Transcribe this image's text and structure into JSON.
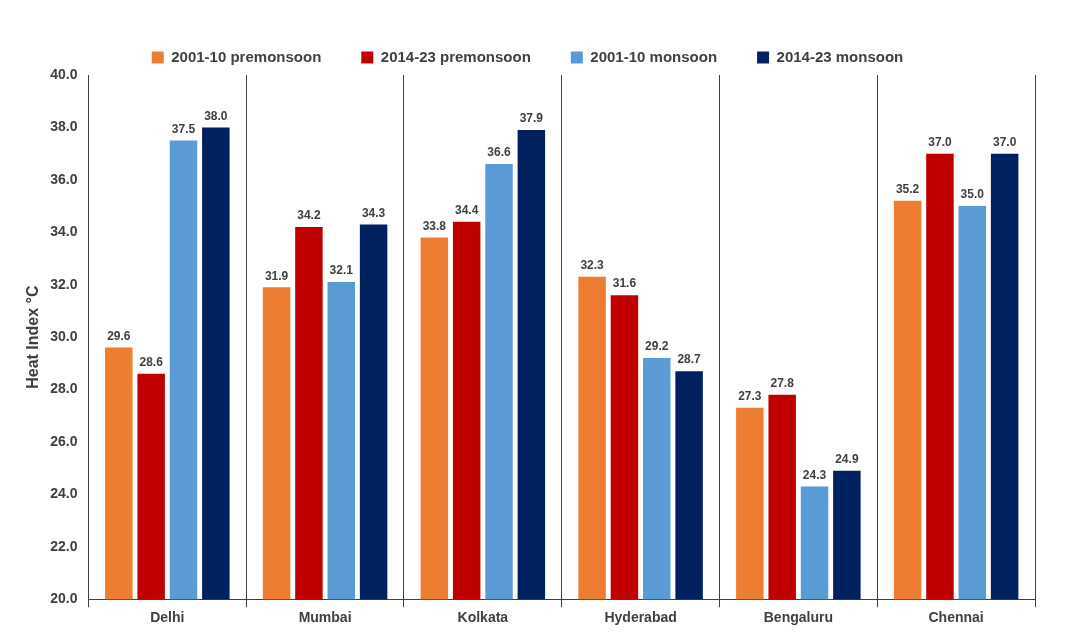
{
  "chart_data": {
    "type": "bar",
    "ylabel": "Heat Index °C",
    "categories": [
      "Delhi",
      "Mumbai",
      "Kolkata",
      "Hyderabad",
      "Bengaluru",
      "Chennai"
    ],
    "series": [
      {
        "name": "2001-10 premonsoon",
        "color": "#ed7d31",
        "values": [
          29.6,
          31.9,
          33.8,
          32.3,
          27.3,
          35.2
        ],
        "value_labels": [
          "29.6",
          "31.9",
          "33.8",
          "32.3",
          "27.3",
          "35.2"
        ]
      },
      {
        "name": "2014-23 premonsoon",
        "color": "#c00000",
        "values": [
          28.6,
          34.2,
          34.4,
          31.6,
          27.8,
          37.0
        ],
        "value_labels": [
          "28.6",
          "34.2",
          "34.4",
          "31.6",
          "27.8",
          "37.0"
        ]
      },
      {
        "name": "2001-10 monsoon",
        "color": "#5b9bd5",
        "values": [
          37.5,
          32.1,
          36.6,
          29.2,
          24.3,
          35.0
        ],
        "value_labels": [
          "37.5",
          "32.1",
          "36.6",
          "29.2",
          "24.3",
          "35.0"
        ]
      },
      {
        "name": "2014-23 monsoon",
        "color": "#002060",
        "values": [
          38.0,
          34.3,
          37.9,
          28.7,
          24.9,
          37.0
        ],
        "value_labels": [
          "38.0",
          "34.3",
          "37.9",
          "28.7",
          "24.9",
          "37.0"
        ]
      }
    ],
    "ylim": [
      20,
      40
    ],
    "yticks": [
      {
        "value": 20,
        "label": "20.0"
      },
      {
        "value": 22,
        "label": "22.0"
      },
      {
        "value": 24,
        "label": "24.0"
      },
      {
        "value": 26,
        "label": "26.0"
      },
      {
        "value": 28,
        "label": "28.0"
      },
      {
        "value": 30,
        "label": "30.0"
      },
      {
        "value": 32,
        "label": "32.0"
      },
      {
        "value": 34,
        "label": "34.0"
      },
      {
        "value": 36,
        "label": "36.0"
      },
      {
        "value": 38,
        "label": "38.0"
      },
      {
        "value": 40,
        "label": "40.0"
      }
    ],
    "grid": "x",
    "legend": "top"
  }
}
